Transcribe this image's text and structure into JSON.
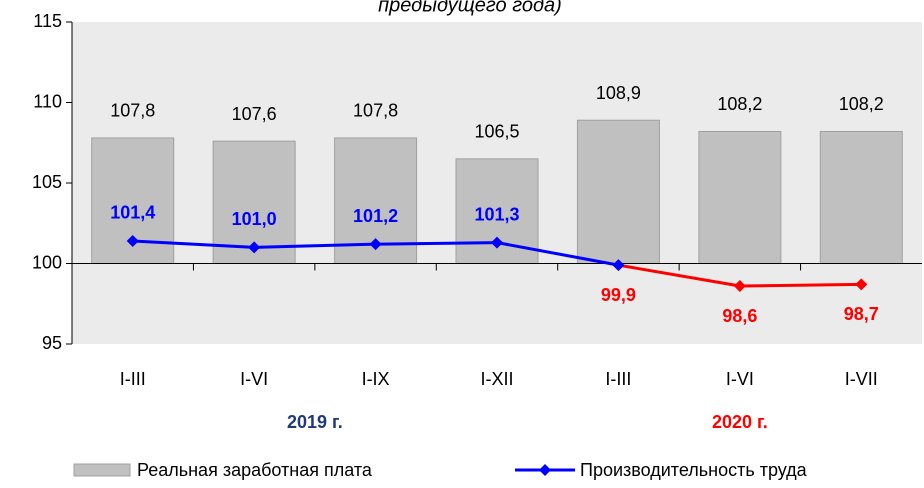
{
  "chart_data": {
    "type": "bar_line",
    "title": "предыдущего года)",
    "categories": [
      "I-III",
      "I-VI",
      "I-IX",
      "I-XII",
      "I-III",
      "I-VI",
      "I-VII"
    ],
    "groups": [
      {
        "label": "2019 г.",
        "count": 4,
        "color": "#1f3a7a"
      },
      {
        "label": "2020 г.",
        "count": 3,
        "color": "#ff0000"
      }
    ],
    "series": [
      {
        "name": "Реальная заработная плата",
        "type": "bar",
        "color": "#c0c0c0",
        "values": [
          107.8,
          107.6,
          107.8,
          106.5,
          108.9,
          108.2,
          108.2
        ],
        "value_labels": [
          "107,8",
          "107,6",
          "107,8",
          "106,5",
          "108,9",
          "108,2",
          "108,2"
        ]
      },
      {
        "name": "Производительность труда",
        "type": "line",
        "color": "#0000ff",
        "point_colors": [
          "#0000ff",
          "#0000ff",
          "#0000ff",
          "#0000ff",
          "#0000ff",
          "#ff0000",
          "#ff0000"
        ],
        "label_colors": [
          "#0000ff",
          "#0000ff",
          "#0000ff",
          "#0000ff",
          "#ff0000",
          "#ff0000",
          "#ff0000"
        ],
        "values": [
          101.4,
          101.0,
          101.2,
          101.3,
          99.9,
          98.6,
          98.7
        ],
        "value_labels": [
          "101,4",
          "101,0",
          "101,2",
          "101,3",
          "99,9",
          "98,6",
          "98,7"
        ]
      }
    ],
    "ylim": [
      95,
      115
    ],
    "yticks": [
      95,
      100,
      105,
      110,
      115
    ],
    "x_axis_at": 100
  }
}
